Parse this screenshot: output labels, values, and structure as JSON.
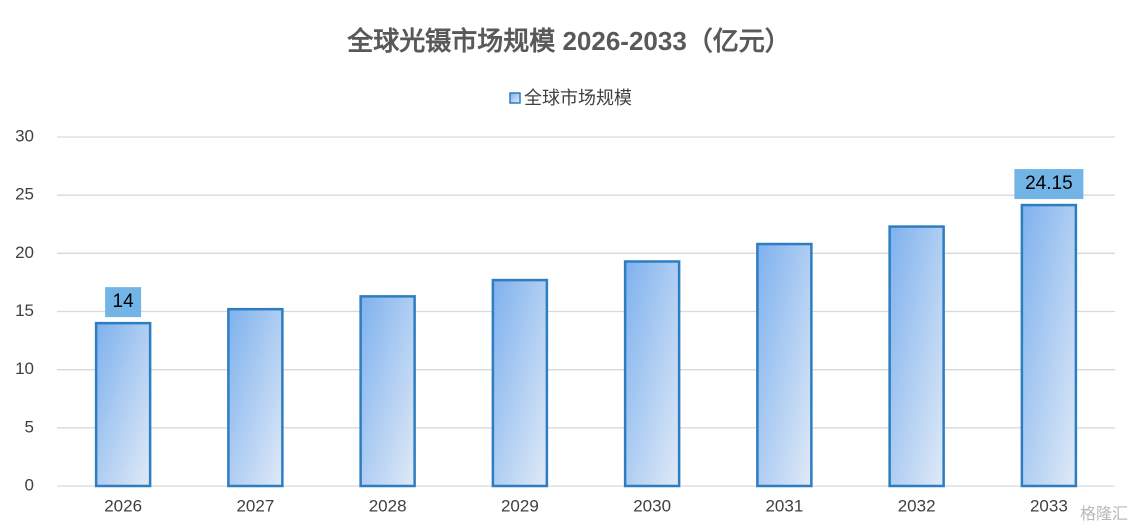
{
  "chart_data": {
    "type": "bar",
    "title": "全球光镊市场规模 2026-2033（亿元）",
    "categories": [
      "2026",
      "2027",
      "2028",
      "2029",
      "2030",
      "2031",
      "2032",
      "2033"
    ],
    "series": [
      {
        "name": "全球市场规模",
        "color": "#2e7dc0",
        "values": [
          14,
          15.2,
          16.3,
          17.7,
          19.3,
          20.8,
          22.3,
          24.15
        ],
        "value_labels": [
          "14",
          null,
          null,
          null,
          null,
          null,
          null,
          "24.15"
        ]
      }
    ],
    "ylim": [
      0,
      30
    ],
    "yticks": [
      0,
      5,
      10,
      15,
      20,
      25,
      30
    ],
    "grid": true,
    "legend": "top",
    "watermark": "格隆汇"
  }
}
